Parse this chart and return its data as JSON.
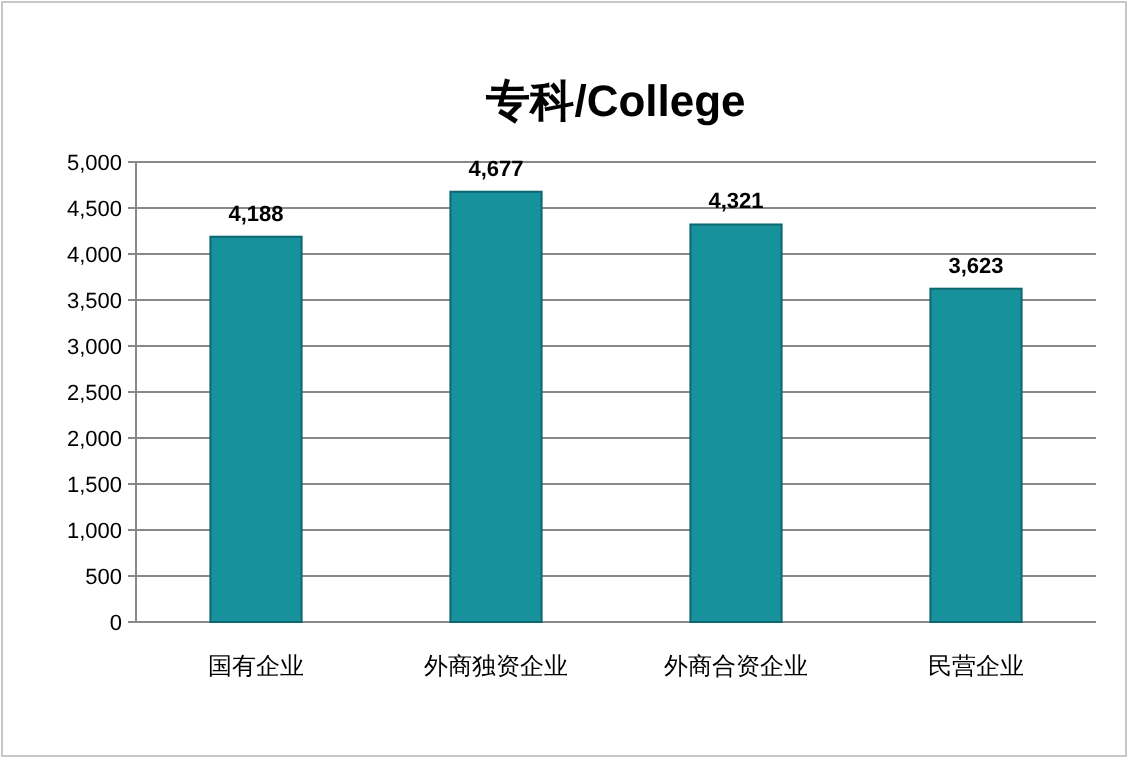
{
  "chart_data": {
    "type": "bar",
    "title": "专科/College",
    "categories": [
      "国有企业",
      "外商独资企业",
      "外商合资企业",
      "民营企业"
    ],
    "values": [
      4188,
      4677,
      4321,
      3623
    ],
    "value_labels": [
      "4,188",
      "4,677",
      "4,321",
      "3,623"
    ],
    "color": "#17919c",
    "ylim": [
      0,
      5000
    ],
    "yticks": [
      {
        "value": 0,
        "label": "0"
      },
      {
        "value": 500,
        "label": "500"
      },
      {
        "value": 1000,
        "label": "1,000"
      },
      {
        "value": 1500,
        "label": "1,500"
      },
      {
        "value": 2000,
        "label": "2,000"
      },
      {
        "value": 2500,
        "label": "2,500"
      },
      {
        "value": 3000,
        "label": "3,000"
      },
      {
        "value": 3500,
        "label": "3,500"
      },
      {
        "value": 4000,
        "label": "4,000"
      },
      {
        "value": 4500,
        "label": "4,500"
      },
      {
        "value": 5000,
        "label": "5,000"
      }
    ],
    "grid": "y"
  }
}
